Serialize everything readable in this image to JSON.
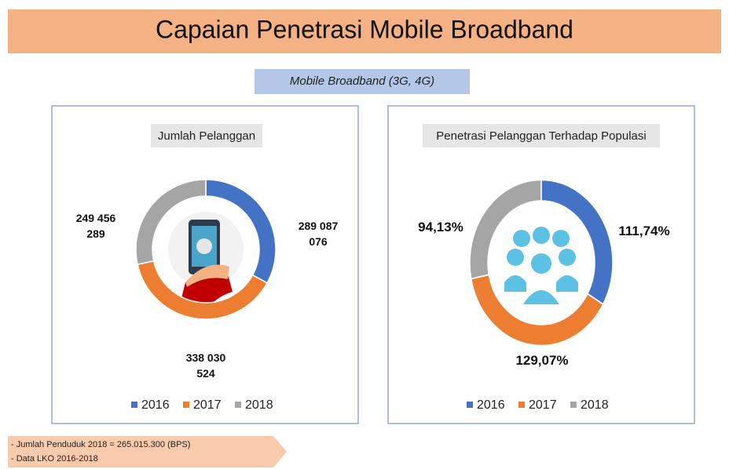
{
  "header": {
    "title": "Capaian Penetrasi Mobile Broadband",
    "subtitle": "Mobile Broadband (3G, 4G)"
  },
  "chart_data": [
    {
      "type": "pie",
      "title": "Jumlah Pelanggan",
      "categories": [
        "2016",
        "2017",
        "2018"
      ],
      "colors": [
        "#4472c4",
        "#ed7d31",
        "#a5a5a5"
      ],
      "values": [
        289087076,
        338030524,
        249456289
      ],
      "value_labels": [
        "289 087 076",
        "338 030 524",
        "249 456 289"
      ]
    },
    {
      "type": "pie",
      "title": "Penetrasi Pelanggan Terhadap Populasi",
      "categories": [
        "2016",
        "2017",
        "2018"
      ],
      "colors": [
        "#4472c4",
        "#ed7d31",
        "#a5a5a5"
      ],
      "values": [
        111.74,
        129.07,
        94.13
      ],
      "value_labels": [
        "111,74%",
        "129,07%",
        "94,13%"
      ]
    }
  ],
  "footnotes": [
    "- Jumlah Penduduk 2018 =  265.015.300 (BPS)",
    "- Data LKO 2016-2018"
  ]
}
